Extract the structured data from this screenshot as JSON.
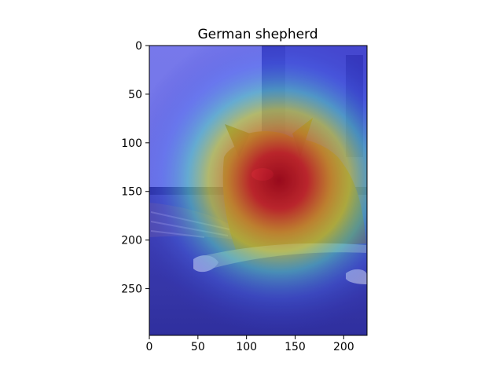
{
  "figure": {
    "title": "German shepherd"
  },
  "image_axes": {
    "x_range": [
      0,
      224
    ],
    "y_range": [
      0,
      298
    ],
    "x_ticks": [
      {
        "value": 0,
        "label": "0"
      },
      {
        "value": 50,
        "label": "50"
      },
      {
        "value": 100,
        "label": "100"
      },
      {
        "value": 150,
        "label": "150"
      },
      {
        "value": 200,
        "label": "200"
      }
    ],
    "y_ticks": [
      {
        "value": 0,
        "label": "0"
      },
      {
        "value": 50,
        "label": "50"
      },
      {
        "value": 100,
        "label": "100"
      },
      {
        "value": 150,
        "label": "150"
      },
      {
        "value": 200,
        "label": "200"
      },
      {
        "value": 250,
        "label": "250"
      }
    ]
  },
  "heatmap": {
    "colormap": "jet",
    "peak_region": "dog head and chest"
  },
  "colors": {
    "wall": "#7d7ff0",
    "floor": "#3a3aa8",
    "door": "#4a4ccf",
    "heat_peak": "#c01010",
    "heat_mid": "#f0f020",
    "heat_cool": "#60f0d0"
  }
}
